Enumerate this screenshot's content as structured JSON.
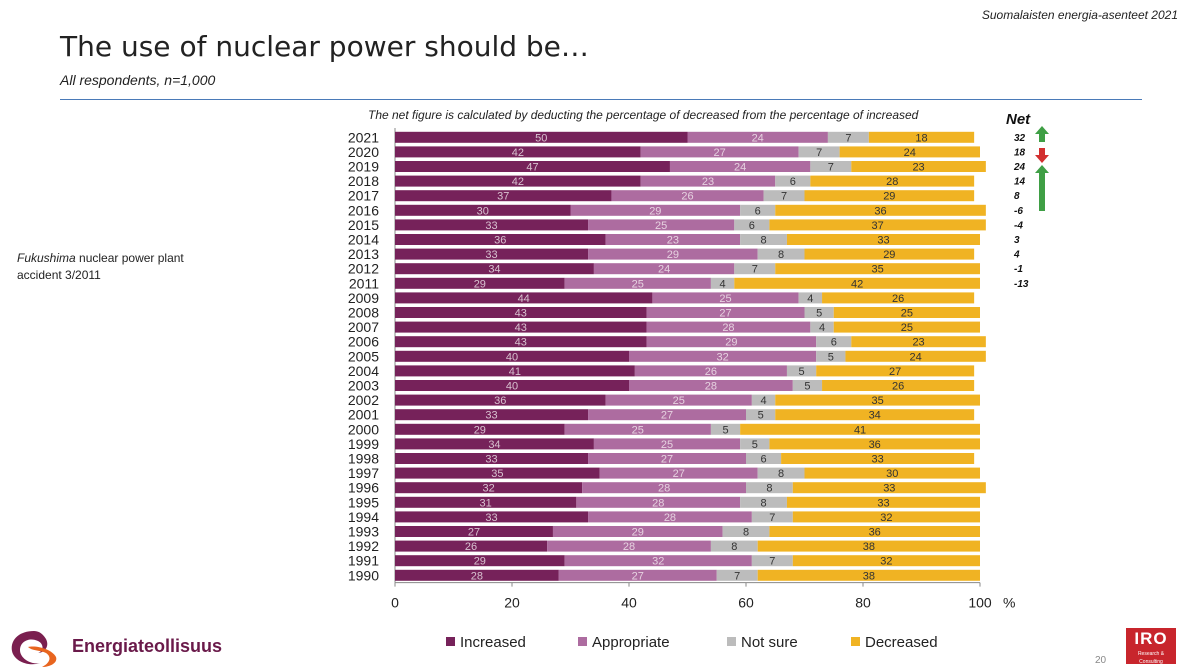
{
  "header": {
    "top_right": "Suomalaisten energia-asenteet 2021",
    "title": "The use of nuclear power should be…",
    "subtitle": "All respondents, n=1,000"
  },
  "net_note": "The net figure is calculated by deducting the percentage of decreased from the percentage of increased",
  "side_note": {
    "italic": "Fukushima",
    "rest": "nuclear power plant accident 3/2011"
  },
  "footer": {
    "logo_text": "Energiateollisuus",
    "badge_main": "IRO",
    "badge_sub": "Research & Consulting",
    "page": "20"
  },
  "colors": {
    "increased": "#76225a",
    "appropriate": "#ad6ca0",
    "not_sure": "#bcbcbc",
    "decreased": "#f0b323",
    "arrow_up": "#3f9f45",
    "arrow_down": "#d32f2f"
  },
  "chart_data": {
    "type": "bar",
    "orientation": "horizontal-stacked",
    "categories": [
      "2021",
      "2020",
      "2019",
      "2018",
      "2017",
      "2016",
      "2015",
      "2014",
      "2013",
      "2012",
      "2011",
      "2009",
      "2008",
      "2007",
      "2006",
      "2005",
      "2004",
      "2003",
      "2002",
      "2001",
      "2000",
      "1999",
      "1998",
      "1997",
      "1996",
      "1995",
      "1994",
      "1993",
      "1992",
      "1991",
      "1990"
    ],
    "series": [
      {
        "name": "Increased",
        "values": [
          50,
          42,
          47,
          42,
          37,
          30,
          33,
          36,
          33,
          34,
          29,
          44,
          43,
          43,
          43,
          40,
          41,
          40,
          36,
          33,
          29,
          34,
          33,
          35,
          32,
          31,
          33,
          27,
          26,
          29,
          28
        ]
      },
      {
        "name": "Appropriate",
        "values": [
          24,
          27,
          24,
          23,
          26,
          29,
          25,
          23,
          29,
          24,
          25,
          25,
          27,
          28,
          29,
          32,
          26,
          28,
          25,
          27,
          25,
          25,
          27,
          27,
          28,
          28,
          28,
          29,
          28,
          32,
          27
        ]
      },
      {
        "name": "Not sure",
        "values": [
          7,
          7,
          7,
          6,
          7,
          6,
          6,
          8,
          8,
          7,
          4,
          4,
          5,
          4,
          6,
          5,
          5,
          5,
          4,
          5,
          5,
          5,
          6,
          8,
          8,
          8,
          7,
          8,
          8,
          7,
          7
        ]
      },
      {
        "name": "Decreased",
        "values": [
          18,
          24,
          23,
          28,
          29,
          36,
          37,
          33,
          29,
          35,
          42,
          26,
          25,
          25,
          23,
          24,
          27,
          26,
          35,
          34,
          41,
          36,
          33,
          30,
          33,
          33,
          32,
          36,
          38,
          32,
          38
        ]
      }
    ],
    "net_label": "Net",
    "net": [
      "32",
      "18",
      "24",
      "14",
      "8",
      "-6",
      "-4",
      "3",
      "4",
      "-1",
      "-13"
    ],
    "xlim": [
      0,
      100
    ],
    "xticks": [
      "0",
      "20",
      "40",
      "60",
      "80",
      "100"
    ],
    "x_unit": "%",
    "legend_position": "bottom"
  }
}
